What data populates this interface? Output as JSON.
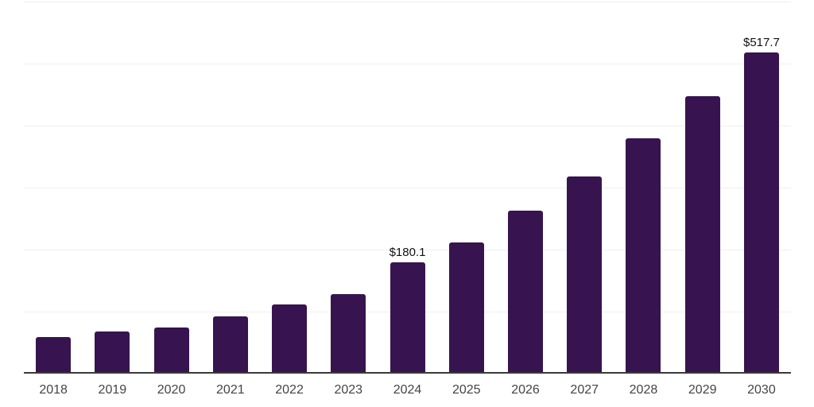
{
  "chart_data": {
    "type": "bar",
    "title": "",
    "xlabel": "",
    "ylabel": "",
    "categories": [
      "2018",
      "2019",
      "2020",
      "2021",
      "2022",
      "2023",
      "2024",
      "2025",
      "2026",
      "2027",
      "2028",
      "2029",
      "2030"
    ],
    "values": [
      59.3,
      67.7,
      75.0,
      93.0,
      111.0,
      128.0,
      180.1,
      212.2,
      263.5,
      318.6,
      380.1,
      448.1,
      517.7
    ],
    "bar_labels": {
      "2024": "$180.1",
      "2030": "$517.7"
    },
    "ylim": [
      0,
      600
    ],
    "gridline_step": 100,
    "grid": true,
    "legend": "none",
    "colors": {
      "background": "#ffffff",
      "bar": "#37144f",
      "gridline": "#efefef",
      "axis": "#3a3a3a",
      "tick_label": "#444444",
      "value_label": "#111111"
    }
  }
}
